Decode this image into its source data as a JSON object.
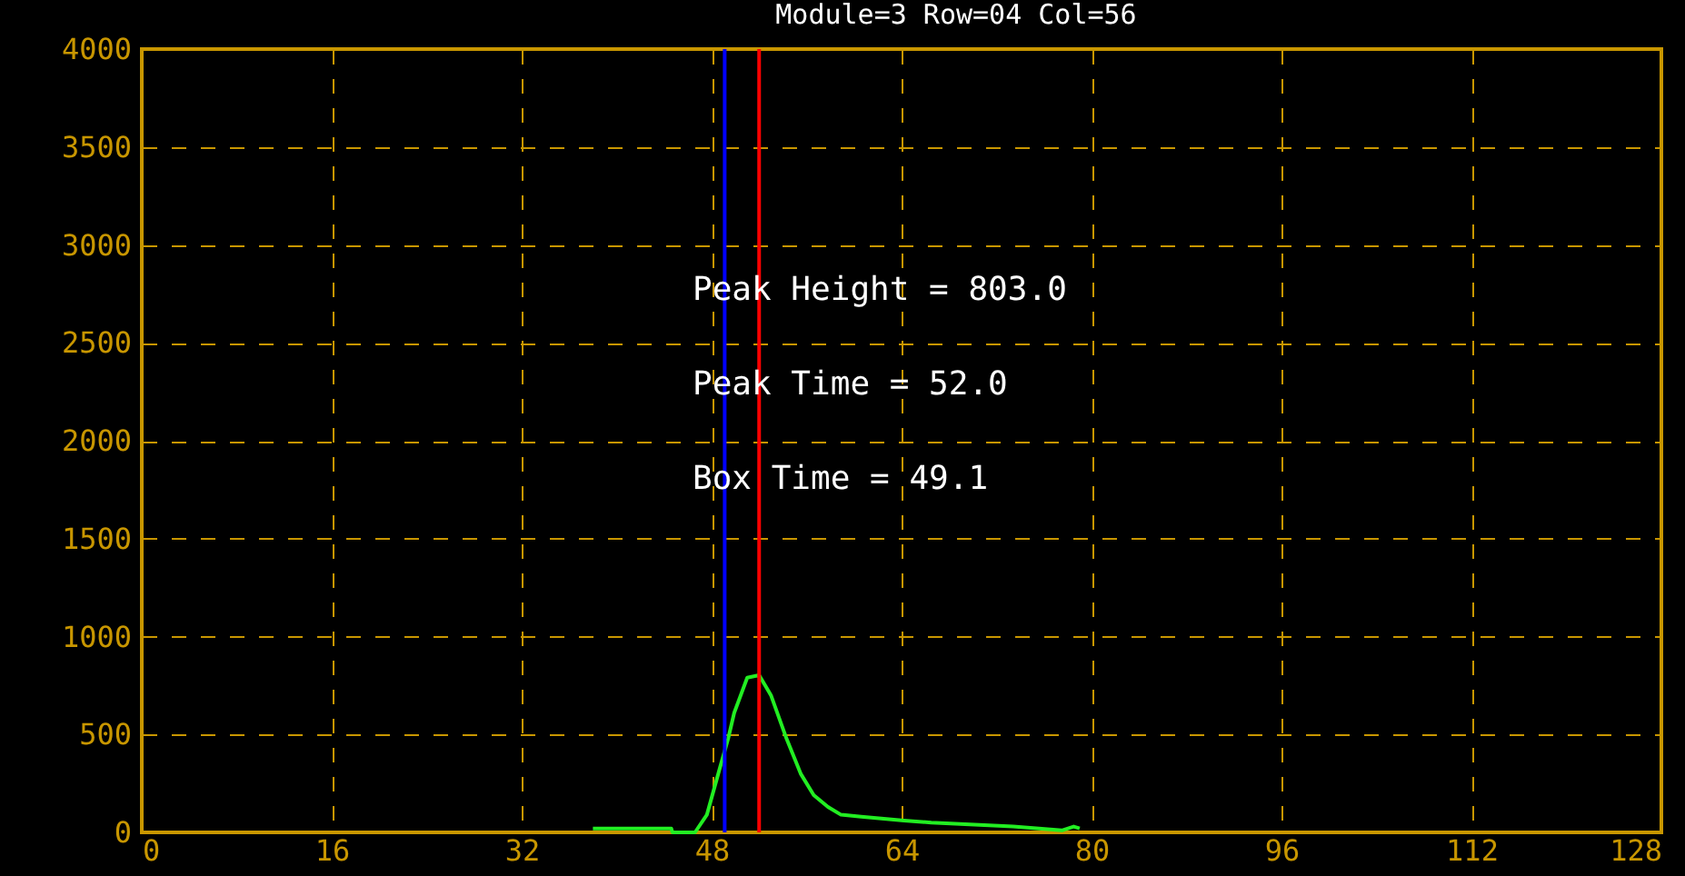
{
  "chart_data": {
    "type": "line",
    "title": "Module=3 Row=04 Col=56",
    "annotations": [
      "Peak Height =  803.0",
      "Peak Time =   52.0",
      "Box Time =   49.1"
    ],
    "series": [
      {
        "color": "#22ee22",
        "x": [
          38.0,
          44.6,
          44.7,
          46.6,
          47.6,
          48.7,
          49.4,
          49.9,
          51.0,
          52.0,
          53.0,
          54.3,
          55.5,
          56.6,
          57.8,
          58.9,
          60.6,
          64.2,
          66.5,
          73.4,
          77.5,
          78.5,
          79.0
        ],
        "values": [
          20,
          20,
          0,
          0,
          90,
          330,
          480,
          610,
          790,
          803,
          700,
          480,
          300,
          190,
          130,
          90,
          80,
          60,
          50,
          30,
          10,
          30,
          20
        ]
      }
    ],
    "xlim": [
      0,
      128
    ],
    "xticks": [
      0,
      16,
      32,
      48,
      64,
      80,
      96,
      112,
      128
    ],
    "ylim": [
      0,
      4000
    ],
    "yticks": [
      0,
      500,
      1000,
      1500,
      2000,
      2500,
      3000,
      3500,
      4000
    ],
    "grid": true,
    "line_style": "solid",
    "marker": "none",
    "ref_lines": [
      {
        "axis": "x",
        "value": 49.1,
        "color": "#0000ff"
      },
      {
        "axis": "x",
        "value": 52.0,
        "color": "#ff0000"
      }
    ]
  }
}
